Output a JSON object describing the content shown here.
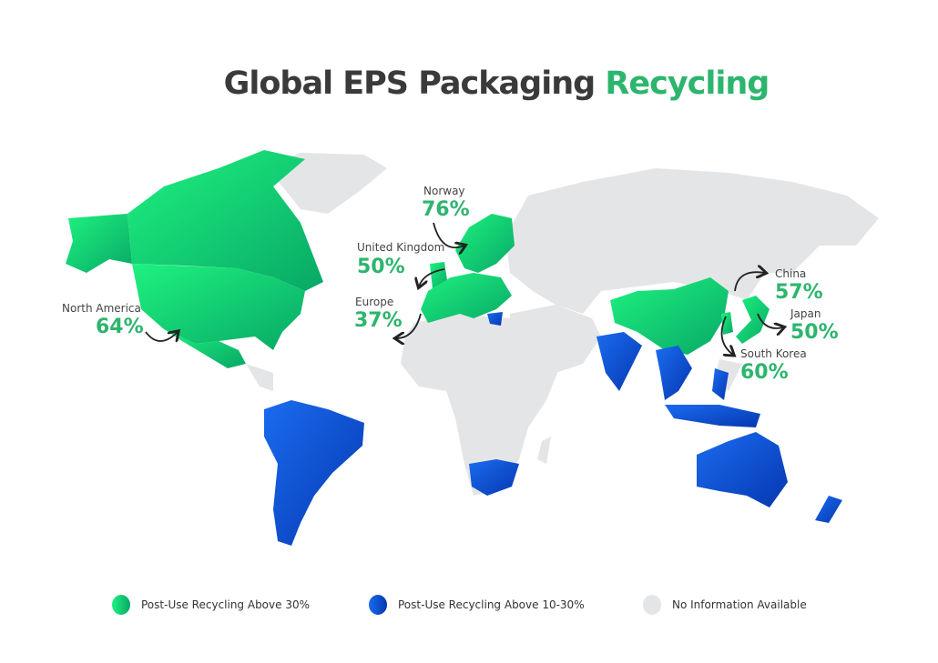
{
  "title": {
    "main": "Global EPS Packaging",
    "accent": "Recycling"
  },
  "colors": {
    "above_30": "#1ee37a",
    "above_10_30": "#0b56d9",
    "no_info": "#e4e5e7",
    "accent": "#2db56e"
  },
  "annotations": [
    {
      "region": "North America",
      "value": "64%"
    },
    {
      "region": "Norway",
      "value": "76%"
    },
    {
      "region": "United Kingdom",
      "value": "50%"
    },
    {
      "region": "Europe",
      "value": "37%"
    },
    {
      "region": "China",
      "value": "57%"
    },
    {
      "region": "Japan",
      "value": "50%"
    },
    {
      "region": "South Korea",
      "value": "60%"
    }
  ],
  "legend": [
    {
      "label": "Post-Use Recycling Above 30%",
      "color": "#1ee37a"
    },
    {
      "label": "Post-Use Recycling Above 10-30%",
      "color": "#0b56d9"
    },
    {
      "label": "No Information Available",
      "color": "#e4e5e7"
    }
  ]
}
